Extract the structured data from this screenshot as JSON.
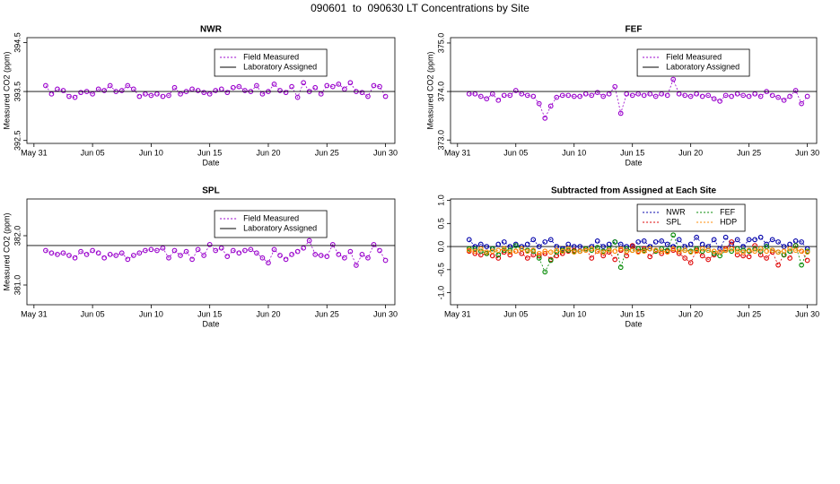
{
  "title": "090601  to  090630 LT Concentrations by Site",
  "chart_data": [
    {
      "type": "line",
      "title": "NWR",
      "xlabel": "Date",
      "ylabel": "Measured CO2 (ppm)",
      "legend": "top-right",
      "xlim": [
        -0.6,
        30.8
      ],
      "xticks": [
        {
          "value": 0,
          "label": "May 31"
        },
        {
          "value": 5,
          "label": "Jun 05"
        },
        {
          "value": 10,
          "label": "Jun 10"
        },
        {
          "value": 15,
          "label": "Jun 15"
        },
        {
          "value": 20,
          "label": "Jun 20"
        },
        {
          "value": 25,
          "label": "Jun 25"
        },
        {
          "value": 30,
          "label": "Jun 30"
        }
      ],
      "ylim": [
        392.44,
        394.6
      ],
      "yticks": [
        392.5,
        393.5,
        394.5
      ],
      "x": [
        1,
        1.5,
        2,
        2.5,
        3,
        3.5,
        4,
        4.5,
        5,
        5.5,
        6,
        6.5,
        7,
        7.5,
        8,
        8.5,
        9,
        9.5,
        10,
        10.5,
        11,
        11.5,
        12,
        12.5,
        13,
        13.5,
        14,
        14.5,
        15,
        15.5,
        16,
        16.5,
        17,
        17.5,
        18,
        18.5,
        19,
        19.5,
        20,
        20.5,
        21,
        21.5,
        22,
        22.5,
        23,
        23.5,
        24,
        24.5,
        25,
        25.5,
        26,
        26.5,
        27,
        27.5,
        28,
        28.5,
        29,
        29.5,
        30
      ],
      "series": [
        {
          "name": "Field Measured",
          "color": "#9900cc",
          "values": [
            393.62,
            393.45,
            393.55,
            393.52,
            393.4,
            393.38,
            393.48,
            393.5,
            393.45,
            393.55,
            393.52,
            393.62,
            393.5,
            393.52,
            393.62,
            393.55,
            393.4,
            393.45,
            393.42,
            393.45,
            393.4,
            393.42,
            393.58,
            393.45,
            393.5,
            393.55,
            393.52,
            393.48,
            393.45,
            393.52,
            393.55,
            393.48,
            393.58,
            393.6,
            393.52,
            393.5,
            393.62,
            393.45,
            393.5,
            393.65,
            393.52,
            393.48,
            393.6,
            393.38,
            393.68,
            393.5,
            393.58,
            393.45,
            393.62,
            393.6,
            393.65,
            393.55,
            393.68,
            393.5,
            393.48,
            393.4,
            393.62,
            393.6,
            393.4
          ]
        },
        {
          "name": "Laboratory Assigned",
          "color": "#000000",
          "hline": 393.5
        }
      ]
    },
    {
      "type": "line",
      "title": "FEF",
      "xlabel": "Date",
      "ylabel": "Measured CO2 (ppm)",
      "legend": "top-right",
      "xlim": [
        -0.6,
        30.8
      ],
      "xticks": [
        {
          "value": 0,
          "label": "May 31"
        },
        {
          "value": 5,
          "label": "Jun 05"
        },
        {
          "value": 10,
          "label": "Jun 10"
        },
        {
          "value": 15,
          "label": "Jun 15"
        },
        {
          "value": 20,
          "label": "Jun 20"
        },
        {
          "value": 25,
          "label": "Jun 25"
        },
        {
          "value": 30,
          "label": "Jun 30"
        }
      ],
      "ylim": [
        372.93,
        375.11
      ],
      "yticks": [
        {
          "value": 373,
          "label": "373.0"
        },
        {
          "value": 374,
          "label": "374.0"
        },
        {
          "value": 375,
          "label": "375.0"
        }
      ],
      "x": [
        1,
        1.5,
        2,
        2.5,
        3,
        3.5,
        4,
        4.5,
        5,
        5.5,
        6,
        6.5,
        7,
        7.5,
        8,
        8.5,
        9,
        9.5,
        10,
        10.5,
        11,
        11.5,
        12,
        12.5,
        13,
        13.5,
        14,
        14.5,
        15,
        15.5,
        16,
        16.5,
        17,
        17.5,
        18,
        18.5,
        19,
        19.5,
        20,
        20.5,
        21,
        21.5,
        22,
        22.5,
        23,
        23.5,
        24,
        24.5,
        25,
        25.5,
        26,
        26.5,
        27,
        27.5,
        28,
        28.5,
        29,
        29.5,
        30
      ],
      "series": [
        {
          "name": "Field Measured",
          "color": "#9900cc",
          "values": [
            373.95,
            373.95,
            373.9,
            373.85,
            373.95,
            373.82,
            373.92,
            373.92,
            374.02,
            373.95,
            373.92,
            373.9,
            373.75,
            373.45,
            373.7,
            373.88,
            373.92,
            373.92,
            373.9,
            373.9,
            373.95,
            373.92,
            373.98,
            373.9,
            373.95,
            374.1,
            373.55,
            373.95,
            373.92,
            373.95,
            373.92,
            373.95,
            373.9,
            373.95,
            373.92,
            374.25,
            373.95,
            373.92,
            373.9,
            373.95,
            373.9,
            373.92,
            373.85,
            373.8,
            373.92,
            373.9,
            373.95,
            373.92,
            373.9,
            373.95,
            373.9,
            374.0,
            373.92,
            373.88,
            373.82,
            373.9,
            374.02,
            373.75,
            373.9
          ]
        },
        {
          "name": "Laboratory Assigned",
          "color": "#000000",
          "hline": 374
        }
      ]
    },
    {
      "type": "line",
      "title": "SPL",
      "xlabel": "Date",
      "ylabel": "Measured CO2 (ppm)",
      "legend": "top-right",
      "xlim": [
        -0.6,
        30.8
      ],
      "xticks": [
        {
          "value": 0,
          "label": "May 31"
        },
        {
          "value": 5,
          "label": "Jun 05"
        },
        {
          "value": 10,
          "label": "Jun 10"
        },
        {
          "value": 15,
          "label": "Jun 15"
        },
        {
          "value": 20,
          "label": "Jun 20"
        },
        {
          "value": 25,
          "label": "Jun 25"
        },
        {
          "value": 30,
          "label": "Jun 30"
        }
      ],
      "ylim": [
        380.6,
        382.745
      ],
      "yticks": [
        {
          "value": 381,
          "label": "381.0"
        },
        {
          "value": 382,
          "label": "382.0"
        }
      ],
      "x": [
        1,
        1.5,
        2,
        2.5,
        3,
        3.5,
        4,
        4.5,
        5,
        5.5,
        6,
        6.5,
        7,
        7.5,
        8,
        8.5,
        9,
        9.5,
        10,
        10.5,
        11,
        11.5,
        12,
        12.5,
        13,
        13.5,
        14,
        14.5,
        15,
        15.5,
        16,
        16.5,
        17,
        17.5,
        18,
        18.5,
        19,
        19.5,
        20,
        20.5,
        21,
        21.5,
        22,
        22.5,
        23,
        23.5,
        24,
        24.5,
        25,
        25.5,
        26,
        26.5,
        27,
        27.5,
        28,
        28.5,
        29,
        29.5,
        30
      ],
      "series": [
        {
          "name": "Field Measured",
          "color": "#9900cc",
          "values": [
            381.7,
            381.65,
            381.62,
            381.65,
            381.6,
            381.55,
            381.68,
            381.62,
            381.7,
            381.65,
            381.55,
            381.62,
            381.6,
            381.65,
            381.52,
            381.6,
            381.65,
            381.7,
            381.72,
            381.7,
            381.75,
            381.55,
            381.7,
            381.6,
            381.68,
            381.52,
            381.72,
            381.6,
            381.82,
            381.7,
            381.75,
            381.58,
            381.7,
            381.65,
            381.7,
            381.72,
            381.65,
            381.55,
            381.45,
            381.72,
            381.6,
            381.52,
            381.62,
            381.68,
            381.75,
            381.9,
            381.62,
            381.6,
            381.58,
            381.82,
            381.62,
            381.55,
            381.68,
            381.4,
            381.62,
            381.55,
            381.82,
            381.7,
            381.5
          ]
        },
        {
          "name": "Laboratory Assigned",
          "color": "#000000",
          "hline": 381.8
        }
      ]
    },
    {
      "type": "line",
      "title": "Subtracted from Assigned at Each Site",
      "xlabel": "Date",
      "legend": "top-right",
      "legend_columns": 2,
      "hline": 0,
      "xlim": [
        -0.6,
        30.8
      ],
      "xticks": [
        {
          "value": 0,
          "label": "May 31"
        },
        {
          "value": 5,
          "label": "Jun 05"
        },
        {
          "value": 10,
          "label": "Jun 10"
        },
        {
          "value": 15,
          "label": "Jun 15"
        },
        {
          "value": 20,
          "label": "Jun 20"
        },
        {
          "value": 25,
          "label": "Jun 25"
        },
        {
          "value": 30,
          "label": "Jun 30"
        }
      ],
      "ylim": [
        -1.26,
        1.03
      ],
      "yticks": [
        {
          "value": -1,
          "label": "-1.0"
        },
        -0.5,
        {
          "value": 0,
          "label": "0.0"
        },
        0.5,
        {
          "value": 1,
          "label": "1.0"
        }
      ],
      "x": [
        1,
        1.5,
        2,
        2.5,
        3,
        3.5,
        4,
        4.5,
        5,
        5.5,
        6,
        6.5,
        7,
        7.5,
        8,
        8.5,
        9,
        9.5,
        10,
        10.5,
        11,
        11.5,
        12,
        12.5,
        13,
        13.5,
        14,
        14.5,
        15,
        15.5,
        16,
        16.5,
        17,
        17.5,
        18,
        18.5,
        19,
        19.5,
        20,
        20.5,
        21,
        21.5,
        22,
        22.5,
        23,
        23.5,
        24,
        24.5,
        25,
        25.5,
        26,
        26.5,
        27,
        27.5,
        28,
        28.5,
        29,
        29.5,
        30
      ],
      "series": [
        {
          "name": "NWR",
          "color": "#0000aa",
          "values": [
            0.15,
            0.0,
            0.05,
            0.0,
            -0.05,
            0.05,
            0.1,
            0.0,
            0.05,
            0.0,
            0.05,
            0.15,
            0.0,
            0.1,
            0.15,
            0.0,
            -0.05,
            0.05,
            0.0,
            0.0,
            -0.05,
            0.0,
            0.12,
            0.0,
            0.05,
            0.1,
            0.05,
            0.0,
            0.0,
            0.1,
            0.12,
            0.0,
            0.1,
            0.12,
            0.05,
            0.0,
            0.15,
            0.0,
            0.05,
            0.2,
            0.05,
            0.0,
            0.15,
            -0.05,
            0.2,
            0.05,
            0.15,
            0.0,
            0.15,
            0.15,
            0.2,
            0.05,
            0.15,
            0.1,
            0.0,
            0.05,
            0.12,
            0.1,
            -0.05
          ]
        },
        {
          "name": "SPL",
          "color": "#dd0000",
          "values": [
            -0.1,
            -0.15,
            -0.18,
            -0.15,
            -0.2,
            -0.25,
            -0.12,
            -0.18,
            -0.1,
            -0.15,
            -0.25,
            -0.18,
            -0.2,
            -0.15,
            -0.28,
            -0.2,
            -0.15,
            -0.1,
            -0.08,
            -0.1,
            -0.05,
            -0.25,
            -0.1,
            -0.2,
            -0.12,
            -0.28,
            -0.08,
            -0.2,
            0.02,
            -0.1,
            -0.05,
            -0.22,
            -0.1,
            -0.15,
            -0.1,
            -0.08,
            -0.15,
            -0.25,
            -0.35,
            -0.08,
            -0.2,
            -0.28,
            -0.18,
            -0.12,
            -0.05,
            0.1,
            -0.18,
            -0.2,
            -0.22,
            0.02,
            -0.18,
            -0.25,
            -0.12,
            -0.4,
            -0.18,
            -0.25,
            0.02,
            -0.1,
            -0.3
          ]
        },
        {
          "name": "FEF",
          "color": "#008800",
          "values": [
            -0.05,
            -0.05,
            -0.1,
            -0.15,
            -0.05,
            -0.18,
            -0.08,
            -0.08,
            0.02,
            -0.05,
            -0.08,
            -0.1,
            -0.25,
            -0.55,
            -0.3,
            -0.12,
            -0.08,
            -0.08,
            -0.1,
            -0.1,
            -0.05,
            -0.08,
            -0.02,
            -0.1,
            -0.05,
            0.1,
            -0.45,
            -0.05,
            -0.08,
            -0.05,
            -0.08,
            -0.05,
            -0.1,
            -0.05,
            -0.08,
            0.25,
            -0.05,
            -0.08,
            -0.1,
            -0.05,
            -0.1,
            -0.08,
            -0.15,
            -0.2,
            -0.08,
            -0.1,
            -0.05,
            -0.08,
            -0.1,
            -0.05,
            -0.1,
            0.0,
            -0.08,
            -0.12,
            -0.18,
            -0.1,
            0.02,
            -0.4,
            -0.1
          ]
        },
        {
          "name": "HDP",
          "color": "#ff8800",
          "values": [
            -0.08,
            -0.1,
            -0.05,
            -0.12,
            -0.1,
            -0.08,
            -0.05,
            -0.12,
            -0.1,
            -0.05,
            -0.1,
            -0.08,
            -0.15,
            -0.1,
            -0.12,
            -0.08,
            -0.1,
            -0.05,
            -0.12,
            -0.1,
            -0.08,
            -0.05,
            -0.1,
            -0.12,
            -0.08,
            -0.1,
            -0.05,
            -0.1,
            -0.08,
            -0.12,
            -0.1,
            -0.05,
            -0.08,
            -0.1,
            -0.12,
            -0.05,
            -0.1,
            -0.08,
            -0.12,
            -0.1,
            -0.05,
            -0.08,
            -0.1,
            -0.12,
            -0.08,
            -0.05,
            -0.1,
            -0.12,
            -0.08,
            -0.1,
            -0.05,
            -0.1,
            -0.08,
            -0.12,
            -0.1,
            -0.05,
            -0.08,
            -0.1,
            -0.12
          ]
        }
      ]
    }
  ]
}
